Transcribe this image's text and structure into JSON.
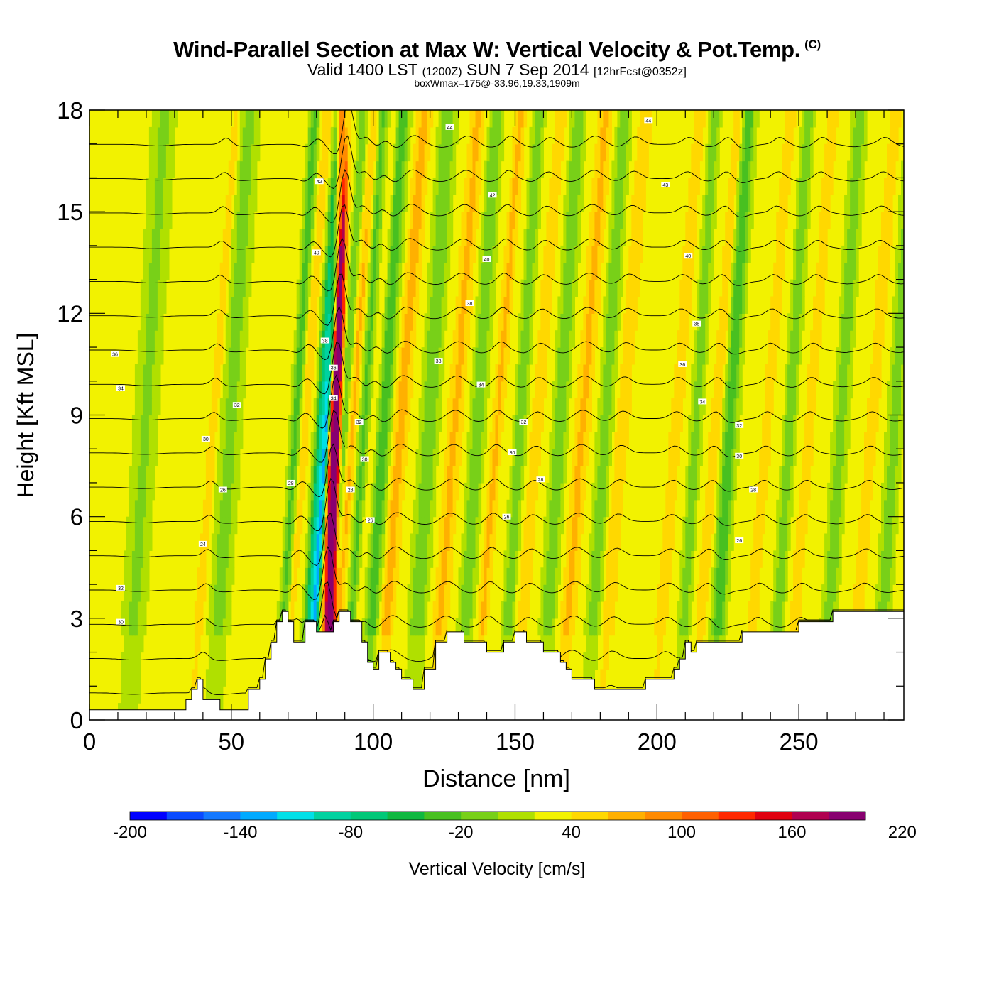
{
  "header": {
    "title": "Wind-Parallel Section at Max W: Vertical Velocity & Pot.Temp.",
    "copyright": "(C)",
    "valid_prefix": "Valid 1400 LST",
    "valid_utc": "(1200Z)",
    "valid_date": "SUN 7 Sep 2014",
    "forecast": "[12hrFcst@0352z]",
    "box_info": "boxWmax=175@-33.96,19.33,1909m"
  },
  "colorbar": {
    "label": "Vertical Velocity [cm/s]",
    "tick_labels": [
      "-200",
      "-140",
      "-80",
      "-20",
      "40",
      "100",
      "160",
      "220"
    ],
    "min": -200,
    "step": 20,
    "colors": [
      "#0000ff",
      "#0a4aff",
      "#1478ff",
      "#00aaff",
      "#00e0e8",
      "#00d2a0",
      "#00c878",
      "#10b840",
      "#48c020",
      "#78d018",
      "#b0e000",
      "#f2f200",
      "#ffd800",
      "#ffb000",
      "#ff8a00",
      "#ff6000",
      "#ff2800",
      "#e00010",
      "#b00050",
      "#880070"
    ]
  },
  "chart_data": {
    "type": "heatmap",
    "title": "Wind-Parallel Section at Max W: Vertical Velocity & Pot.Temp.",
    "xlabel": "Distance [nm]",
    "ylabel": "Height [Kft MSL]",
    "xlim": [
      0,
      287
    ],
    "ylim": [
      0,
      18
    ],
    "x_ticks": [
      0,
      50,
      100,
      150,
      200,
      250
    ],
    "y_ticks": [
      0,
      3,
      6,
      9,
      12,
      15,
      18
    ],
    "background_velocity": 30,
    "updraft_bands": [
      {
        "x": 86,
        "w": 1.6,
        "v": 175
      },
      {
        "x": 87.5,
        "w": 1.4,
        "v": 150
      },
      {
        "x": 76,
        "w": 1.8,
        "v": 45
      },
      {
        "x": 93,
        "w": 1.8,
        "v": 55
      },
      {
        "x": 100,
        "w": 1.5,
        "v": 40
      },
      {
        "x": 110,
        "w": 2.5,
        "v": 60
      },
      {
        "x": 129,
        "w": 2.5,
        "v": 55
      },
      {
        "x": 144,
        "w": 1.8,
        "v": 55
      },
      {
        "x": 158,
        "w": 2.0,
        "v": 45
      },
      {
        "x": 174,
        "w": 2.5,
        "v": 55
      },
      {
        "x": 188,
        "w": 2.2,
        "v": 50
      },
      {
        "x": 207,
        "w": 2.0,
        "v": 45
      },
      {
        "x": 221,
        "w": 1.8,
        "v": 50
      },
      {
        "x": 239,
        "w": 1.8,
        "v": 45
      },
      {
        "x": 254,
        "w": 1.8,
        "v": 45
      },
      {
        "x": 276,
        "w": 2.0,
        "v": 45
      },
      {
        "x": 44,
        "w": 1.5,
        "v": 45
      }
    ],
    "downdraft_bands": [
      {
        "x": 82,
        "w": 2.0,
        "v": -90
      },
      {
        "x": 84,
        "w": 1.2,
        "v": -100
      },
      {
        "x": 73,
        "w": 1.8,
        "v": -40
      },
      {
        "x": 90,
        "w": 1.5,
        "v": -30
      },
      {
        "x": 97,
        "w": 2.0,
        "v": -35
      },
      {
        "x": 104,
        "w": 2.5,
        "v": -45
      },
      {
        "x": 120,
        "w": 3.0,
        "v": -30
      },
      {
        "x": 137,
        "w": 2.5,
        "v": -30
      },
      {
        "x": 152,
        "w": 2.0,
        "v": -30
      },
      {
        "x": 166,
        "w": 2.5,
        "v": -30
      },
      {
        "x": 182,
        "w": 2.5,
        "v": -25
      },
      {
        "x": 214,
        "w": 2.0,
        "v": -25
      },
      {
        "x": 226,
        "w": 2.5,
        "v": -45
      },
      {
        "x": 247,
        "w": 2.0,
        "v": -30
      },
      {
        "x": 265,
        "w": 2.5,
        "v": -25
      },
      {
        "x": 20,
        "w": 4.0,
        "v": -15
      },
      {
        "x": 50,
        "w": 3.5,
        "v": -20
      },
      {
        "x": 284,
        "w": 2.5,
        "v": -25
      }
    ],
    "terrain": {
      "x": [
        0,
        34,
        34,
        36,
        36,
        38,
        38,
        40,
        40,
        46,
        46,
        48,
        48,
        56,
        56,
        60,
        60,
        62,
        62,
        64,
        64,
        66,
        66,
        68,
        68,
        70,
        70,
        72,
        72,
        76,
        76,
        80,
        80,
        84,
        84,
        86,
        86,
        88,
        88,
        92,
        92,
        96,
        96,
        98,
        98,
        100,
        100,
        102,
        102,
        106,
        106,
        108,
        108,
        110,
        110,
        114,
        114,
        118,
        118,
        122,
        122,
        126,
        126,
        132,
        132,
        140,
        140,
        146,
        146,
        150,
        150,
        154,
        154,
        160,
        160,
        166,
        166,
        168,
        168,
        170,
        170,
        178,
        178,
        196,
        196,
        206,
        206,
        208,
        208,
        210,
        210,
        212,
        212,
        214,
        214,
        230,
        230,
        250,
        250,
        262,
        262,
        270,
        270,
        287
      ],
      "h": [
        0.3,
        0.3,
        0.6,
        0.6,
        0.9,
        0.9,
        1.2,
        1.2,
        0.6,
        0.6,
        0.3,
        0.3,
        0.3,
        0.3,
        0.9,
        0.9,
        1.2,
        1.2,
        1.8,
        1.8,
        2.3,
        2.3,
        2.9,
        2.9,
        3.2,
        3.2,
        2.9,
        2.9,
        2.3,
        2.3,
        2.9,
        2.9,
        2.6,
        2.6,
        2.6,
        2.6,
        2.9,
        2.9,
        3.2,
        3.2,
        2.9,
        2.9,
        2.3,
        2.3,
        1.7,
        1.7,
        1.5,
        1.5,
        2.0,
        2.0,
        1.7,
        1.7,
        1.5,
        1.5,
        1.2,
        1.2,
        0.9,
        0.9,
        1.5,
        1.5,
        2.3,
        2.3,
        2.6,
        2.6,
        2.3,
        2.3,
        2.0,
        2.0,
        2.3,
        2.3,
        2.6,
        2.6,
        2.3,
        2.3,
        2.0,
        2.0,
        1.7,
        1.7,
        1.5,
        1.5,
        1.2,
        1.2,
        0.9,
        0.9,
        1.2,
        1.2,
        1.5,
        1.5,
        1.8,
        1.8,
        2.3,
        2.3,
        2.0,
        2.0,
        2.3,
        2.3,
        2.6,
        2.6,
        2.9,
        2.9,
        3.2,
        3.2,
        3.2,
        3.2
      ]
    },
    "theta_contours": {
      "levels": [
        28,
        29,
        30,
        31,
        32,
        33,
        34,
        35,
        36,
        37,
        38,
        39,
        40,
        41,
        42,
        43,
        44
      ],
      "labels": [
        {
          "x": 11,
          "y": 2.9,
          "text": "30"
        },
        {
          "x": 11,
          "y": 3.9,
          "text": "32"
        },
        {
          "x": 11,
          "y": 9.8,
          "text": "34"
        },
        {
          "x": 9,
          "y": 10.8,
          "text": "36"
        },
        {
          "x": 40,
          "y": 5.2,
          "text": "24"
        },
        {
          "x": 47,
          "y": 6.8,
          "text": "26"
        },
        {
          "x": 41,
          "y": 8.3,
          "text": "30"
        },
        {
          "x": 52,
          "y": 9.3,
          "text": "32"
        },
        {
          "x": 71,
          "y": 7.0,
          "text": "28"
        },
        {
          "x": 83,
          "y": 11.2,
          "text": "38"
        },
        {
          "x": 86,
          "y": 10.4,
          "text": "36"
        },
        {
          "x": 86,
          "y": 9.5,
          "text": "34"
        },
        {
          "x": 80,
          "y": 13.8,
          "text": "40"
        },
        {
          "x": 81,
          "y": 15.9,
          "text": "42"
        },
        {
          "x": 95,
          "y": 8.8,
          "text": "32"
        },
        {
          "x": 97,
          "y": 7.7,
          "text": "30"
        },
        {
          "x": 92,
          "y": 6.8,
          "text": "28"
        },
        {
          "x": 99,
          "y": 5.9,
          "text": "26"
        },
        {
          "x": 123,
          "y": 10.6,
          "text": "38"
        },
        {
          "x": 127,
          "y": 17.5,
          "text": "44"
        },
        {
          "x": 134,
          "y": 12.3,
          "text": "38"
        },
        {
          "x": 138,
          "y": 9.9,
          "text": "34"
        },
        {
          "x": 140,
          "y": 13.6,
          "text": "40"
        },
        {
          "x": 142,
          "y": 15.5,
          "text": "42"
        },
        {
          "x": 153,
          "y": 8.8,
          "text": "32"
        },
        {
          "x": 149,
          "y": 7.9,
          "text": "30"
        },
        {
          "x": 159,
          "y": 7.1,
          "text": "28"
        },
        {
          "x": 147,
          "y": 6.0,
          "text": "26"
        },
        {
          "x": 197,
          "y": 17.7,
          "text": "44"
        },
        {
          "x": 203,
          "y": 15.8,
          "text": "43"
        },
        {
          "x": 211,
          "y": 13.7,
          "text": "40"
        },
        {
          "x": 214,
          "y": 11.7,
          "text": "38"
        },
        {
          "x": 209,
          "y": 10.5,
          "text": "36"
        },
        {
          "x": 216,
          "y": 9.4,
          "text": "34"
        },
        {
          "x": 229,
          "y": 8.7,
          "text": "32"
        },
        {
          "x": 229,
          "y": 7.8,
          "text": "30"
        },
        {
          "x": 234,
          "y": 6.8,
          "text": "28"
        },
        {
          "x": 229,
          "y": 5.3,
          "text": "26"
        }
      ]
    }
  }
}
